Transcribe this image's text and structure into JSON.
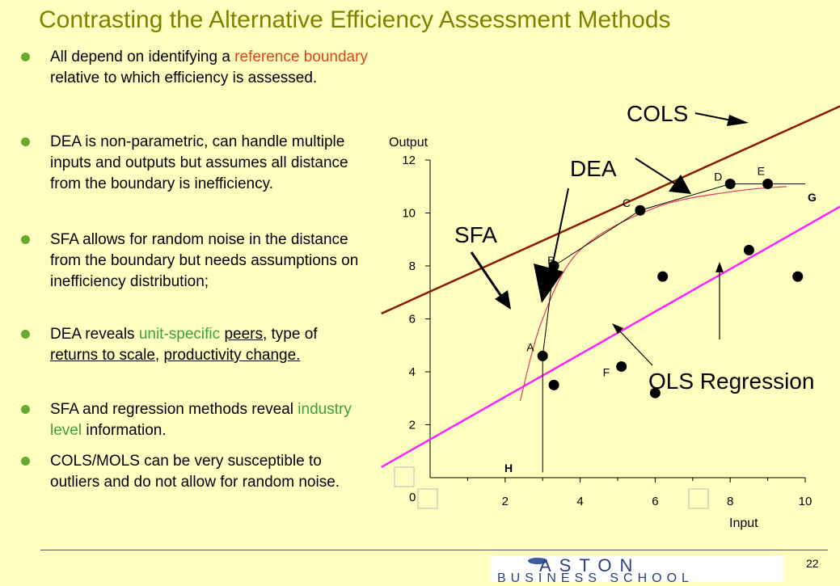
{
  "title": "Contrasting the Alternative Efficiency Assessment Methods",
  "bullets": [
    {
      "parts": [
        {
          "t": "All depend on identifying a "
        },
        {
          "t": "reference boundary",
          "c": "red"
        },
        {
          "t": " relative to which efficiency is assessed."
        }
      ]
    },
    {
      "parts": [
        {
          "t": "DEA is non-parametric, can handle multiple inputs and outputs but assumes all distance from the boundary is inefficiency."
        }
      ]
    },
    {
      "parts": [
        {
          "t": "SFA allows for random noise in the distance from the boundary but needs assumptions on inefficiency distribution;"
        }
      ]
    },
    {
      "parts": [
        {
          "t": "DEA reveals "
        },
        {
          "t": "unit-specific",
          "c": "green"
        },
        {
          "t": " "
        },
        {
          "t": "peers",
          "u": true
        },
        {
          "t": ", type of "
        },
        {
          "t": "returns to scale",
          "u": true
        },
        {
          "t": ", "
        },
        {
          "t": "productivity change.",
          "u": true
        }
      ]
    },
    {
      "parts": [
        {
          "t": "SFA and regression methods reveal  "
        },
        {
          "t": "industry level",
          "c": "green"
        },
        {
          "t": " information."
        }
      ]
    },
    {
      "parts": [
        {
          "t": "COLS/MOLS  can be very susceptible to outliers and do not allow for random noise."
        }
      ]
    }
  ],
  "page_number": "22",
  "logo": {
    "line1": "ASTON",
    "line2": "BUSINESS SCHOOL"
  },
  "colors": {
    "title": "#808000",
    "bullet": "#66aa33",
    "cols_line": "#8b1a00",
    "ols_line": "#ff22ff",
    "curve": "#ee3366",
    "background": "#ffffc0"
  },
  "chart_data": {
    "type": "scatter",
    "xlabel": "Input",
    "ylabel": "Output",
    "xlim": [
      0,
      10
    ],
    "ylim": [
      0,
      12
    ],
    "xticks": [
      "2",
      "4",
      "6",
      "8",
      "10"
    ],
    "yticks": [
      "2",
      "4",
      "6",
      "8",
      "10",
      "12"
    ],
    "origin_label": "0",
    "points": [
      {
        "label": "A",
        "x": 3.0,
        "y": 4.6
      },
      {
        "label": "B",
        "x": 3.3,
        "y": 8.0
      },
      {
        "label": "C",
        "x": 5.6,
        "y": 10.1
      },
      {
        "label": "D",
        "x": 8.0,
        "y": 11.1
      },
      {
        "label": "E",
        "x": 9.0,
        "y": 11.1
      },
      {
        "label": "",
        "x": 3.3,
        "y": 3.5
      },
      {
        "label": "F",
        "x": 5.1,
        "y": 4.2
      },
      {
        "label": "",
        "x": 6.0,
        "y": 3.2
      },
      {
        "label": "",
        "x": 6.2,
        "y": 7.6
      },
      {
        "label": "",
        "x": 8.5,
        "y": 8.6
      },
      {
        "label": "",
        "x": 9.8,
        "y": 7.6
      }
    ],
    "dea_frontier": [
      [
        3.0,
        0.2
      ],
      [
        3.0,
        4.6
      ],
      [
        3.3,
        8.0
      ],
      [
        5.6,
        10.1
      ],
      [
        8.0,
        11.1
      ],
      [
        10.0,
        11.1
      ]
    ],
    "cols_line": [
      [
        -1.3,
        6.2
      ],
      [
        11.5,
        14.4
      ]
    ],
    "ols_line": [
      [
        -1.3,
        0.4
      ],
      [
        11.5,
        10.7
      ]
    ],
    "sfa_curve": [
      [
        2.4,
        2.9
      ],
      [
        3.0,
        6.0
      ],
      [
        4.0,
        8.6
      ],
      [
        6.0,
        10.2
      ],
      [
        8.0,
        10.8
      ],
      [
        9.5,
        11.0
      ]
    ],
    "labels": {
      "G": "G",
      "H": "H"
    },
    "annotations": [
      "COLS",
      "DEA",
      "SFA",
      "OLS Regression"
    ]
  }
}
